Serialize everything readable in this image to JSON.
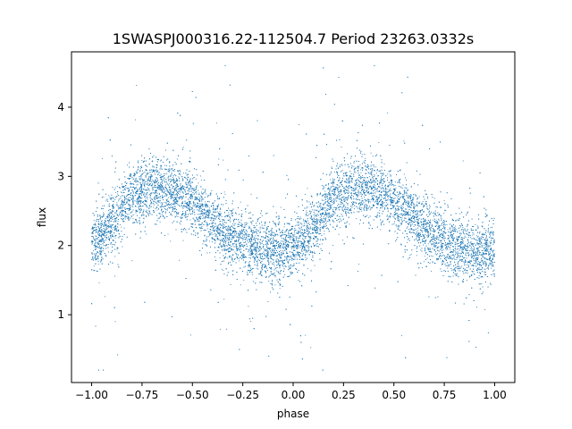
{
  "chart_data": {
    "type": "scatter",
    "title": "1SWASPJ000316.22-112504.7 Period 23263.0332s",
    "xlabel": "phase",
    "ylabel": "flux",
    "xlim": [
      -1.1,
      1.1
    ],
    "ylim": [
      0.02,
      4.8
    ],
    "xticks": [
      -1.0,
      -0.75,
      -0.5,
      -0.25,
      0.0,
      0.25,
      0.5,
      0.75,
      1.0
    ],
    "xtick_labels": [
      "−1.00",
      "−0.75",
      "−0.50",
      "−0.25",
      "0.00",
      "0.25",
      "0.50",
      "0.75",
      "1.00"
    ],
    "yticks": [
      1,
      2,
      3,
      4
    ],
    "ytick_labels": [
      "1",
      "2",
      "3",
      "4"
    ],
    "grid": false,
    "marker_color": "#1f77b4",
    "series": [
      {
        "name": "",
        "trend": {
          "x": [
            -1.0,
            -0.9,
            -0.8,
            -0.7,
            -0.6,
            -0.5,
            -0.4,
            -0.3,
            -0.2,
            -0.1,
            0.0,
            0.1,
            0.2,
            0.3,
            0.4,
            0.5,
            0.6,
            0.7,
            0.8,
            0.9,
            1.0
          ],
          "y": [
            1.98,
            2.35,
            2.72,
            2.85,
            2.8,
            2.62,
            2.35,
            2.1,
            1.98,
            1.92,
            1.95,
            2.2,
            2.7,
            2.85,
            2.82,
            2.62,
            2.35,
            2.12,
            1.98,
            1.92,
            1.95
          ]
        },
        "scatter_sigma": 0.22,
        "outlier_fraction": 0.05,
        "n_points": 15000
      }
    ]
  }
}
